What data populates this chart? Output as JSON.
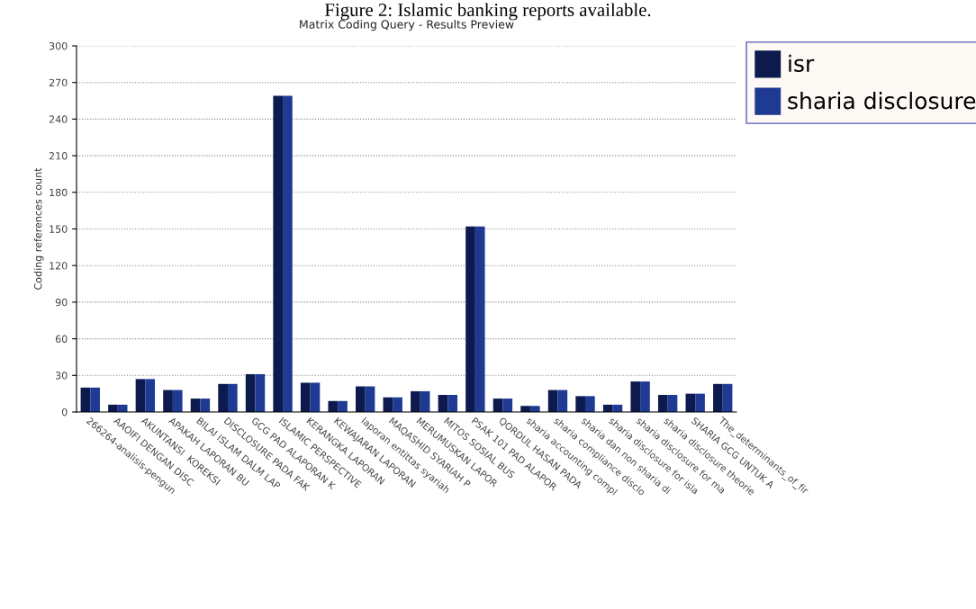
{
  "chart_data": {
    "type": "bar",
    "title": "Matrix Coding Query - Results Preview",
    "ylabel": "Coding references count",
    "annotations": [
      "Figure 2: Islamic banking reports available."
    ],
    "categories": [
      "266264-analisis-pengun",
      "AAOIFI DENGAN DISC",
      "AKUNTANSI  KOREKSI",
      "APAKAH LAPORAN BU",
      "BILAI ISLAM DALM LAP",
      "DISCLOSURE PADA FAK",
      "GCG PAD ALAPORAN K",
      "ISLAMIC PERSPECTIVE",
      "KERANGKA LAPORAN",
      "KEWAJARAN LAPORAN",
      "laporan entittas syariah",
      "MAQASHID SYARIAH P",
      "MERUMUSKAN LAPOR",
      "MITOS SOSIAL BUS",
      "PSAK 101 PAD ALAPOR",
      "QORDUL HASAN PADA",
      "sharia accounting compl",
      "sharia compliance disclo",
      "sharia dan non sharia di",
      "sharia disclosure for isla",
      "sharia disclosure for ma",
      "sharia disclosure theorie",
      "SHARIA GCG UNTUK A",
      "The_determinants_of_fir"
    ],
    "series": [
      {
        "name": "isr",
        "color": "#0d1a4d",
        "values": [
          20,
          6,
          27,
          18,
          11,
          23,
          31,
          259,
          24,
          9,
          21,
          12,
          17,
          14,
          152,
          11,
          5,
          18,
          13,
          6,
          25,
          14,
          15,
          23
        ]
      },
      {
        "name": "sharia disclosure",
        "color": "#1f3a93",
        "values": [
          20,
          6,
          27,
          18,
          11,
          23,
          31,
          259,
          24,
          9,
          21,
          12,
          17,
          14,
          152,
          11,
          5,
          18,
          13,
          6,
          25,
          14,
          15,
          23
        ]
      }
    ],
    "ylim": [
      0,
      300
    ],
    "yticks": [
      0,
      30,
      60,
      90,
      120,
      150,
      180,
      210,
      240,
      270,
      300
    ],
    "grid": "y",
    "legend": "right"
  }
}
